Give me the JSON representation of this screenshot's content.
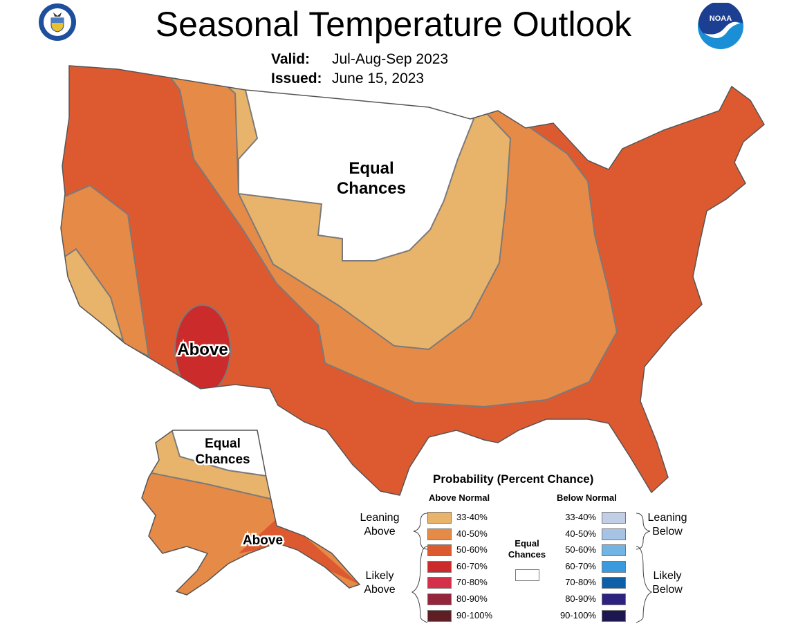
{
  "header": {
    "title": "Seasonal Temperature Outlook",
    "valid_label": "Valid:",
    "valid_value": "Jul-Aug-Sep 2023",
    "issued_label": "Issued:",
    "issued_value": "June 15, 2023",
    "left_logo": "Department of Commerce seal",
    "right_logo": "NOAA"
  },
  "map": {
    "labels": {
      "conus_equal": [
        "Equal",
        "Chances"
      ],
      "conus_above": "Above",
      "alaska_equal": [
        "Equal",
        "Chances"
      ],
      "alaska_above": "Above"
    }
  },
  "legend": {
    "title": "Probability (Percent Chance)",
    "above_header": "Above Normal",
    "below_header": "Below Normal",
    "leaning_above": [
      "Leaning",
      "Above"
    ],
    "likely_above": [
      "Likely",
      "Above"
    ],
    "leaning_below": [
      "Leaning",
      "Below"
    ],
    "likely_below": [
      "Likely",
      "Below"
    ],
    "equal_chances": [
      "Equal",
      "Chances"
    ],
    "equal_color": "#ffffff",
    "above": [
      {
        "range": "33-40%",
        "color": "#e8b36a"
      },
      {
        "range": "40-50%",
        "color": "#e68a48"
      },
      {
        "range": "50-60%",
        "color": "#dd5a30"
      },
      {
        "range": "60-70%",
        "color": "#cc2b2b"
      },
      {
        "range": "70-80%",
        "color": "#d4304a"
      },
      {
        "range": "80-90%",
        "color": "#93263a"
      },
      {
        "range": "90-100%",
        "color": "#5e1e24"
      }
    ],
    "below": [
      {
        "range": "33-40%",
        "color": "#c2cde6"
      },
      {
        "range": "40-50%",
        "color": "#a6c3e6"
      },
      {
        "range": "50-60%",
        "color": "#72b4e4"
      },
      {
        "range": "60-70%",
        "color": "#3a9ade"
      },
      {
        "range": "70-80%",
        "color": "#0d5fa8"
      },
      {
        "range": "80-90%",
        "color": "#2e2280"
      },
      {
        "range": "90-100%",
        "color": "#1c1750"
      }
    ]
  }
}
